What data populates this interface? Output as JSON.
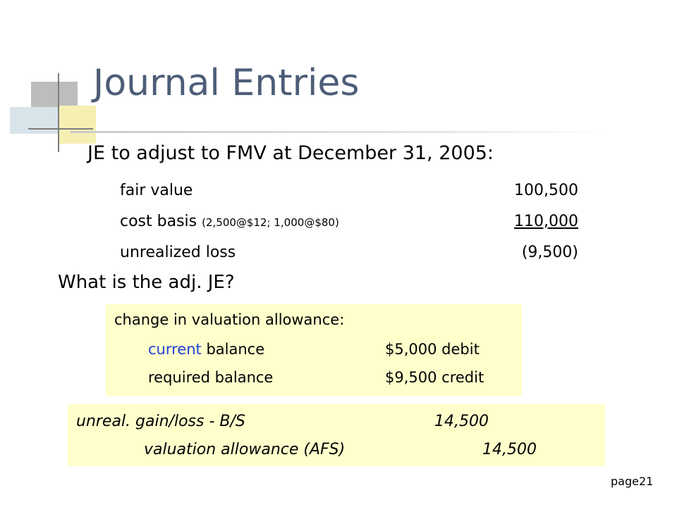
{
  "slide": {
    "title": "Journal Entries",
    "heading": "JE to adjust to FMV at December 31, 2005:",
    "rows": [
      {
        "label": "fair value",
        "note": "",
        "value": "100,500"
      },
      {
        "label": "cost basis ",
        "note": "(2,500@$12; 1,000@$80)",
        "value": "110,000"
      },
      {
        "label": "unrealized loss",
        "note": "",
        "value": "(9,500)"
      }
    ],
    "question": "What is the adj. JE?",
    "allowance": {
      "title": "change in valuation allowance:",
      "current_word": "current",
      "current_rest": " balance",
      "current_amount": "$5,000 debit",
      "required_label": "required balance",
      "required_amount": "$9,500 credit"
    },
    "entry": {
      "debit_account": "unreal. gain/loss - B/S",
      "debit_amount": "14,500",
      "credit_account": "valuation allowance (AFS)",
      "credit_amount": "14,500"
    },
    "page": "page21"
  },
  "colors": {
    "title": "#4d5d78",
    "highlight_box": "#ffffcc",
    "accent_blue": "#1f3fd6"
  }
}
